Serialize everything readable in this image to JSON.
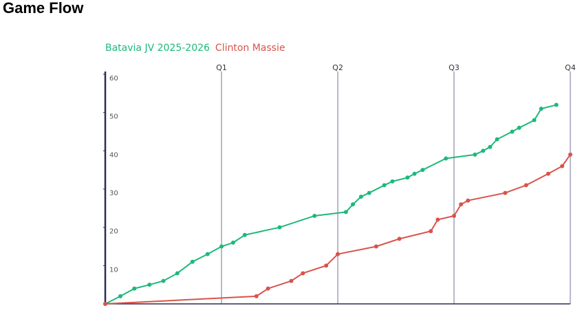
{
  "chart_data": {
    "type": "line",
    "title": "Game Flow",
    "xlim": [
      0,
      4
    ],
    "xticks": [
      {
        "value": 1,
        "label": "Q1"
      },
      {
        "value": 2,
        "label": "Q2"
      },
      {
        "value": 3,
        "label": "Q3"
      },
      {
        "value": 4,
        "label": "Q4"
      }
    ],
    "ylim": [
      0,
      60
    ],
    "yticks": [
      10,
      20,
      30,
      40,
      50,
      60
    ],
    "grid": true,
    "series": [
      {
        "name": "Batavia JV 2025-2026",
        "color": "#1db97a",
        "x": [
          0,
          0.13,
          0.25,
          0.38,
          0.5,
          0.62,
          0.75,
          0.88,
          1.0,
          1.1,
          1.2,
          1.5,
          1.8,
          2.07,
          2.13,
          2.2,
          2.27,
          2.4,
          2.47,
          2.6,
          2.66,
          2.73,
          2.93,
          3.18,
          3.25,
          3.31,
          3.37,
          3.5,
          3.56,
          3.69,
          3.75,
          3.88
        ],
        "values": [
          0,
          2,
          4,
          5,
          6,
          8,
          11,
          13,
          15,
          16,
          18,
          20,
          23,
          24,
          26,
          28,
          29,
          31,
          32,
          33,
          34,
          35,
          38,
          39,
          40,
          41,
          43,
          45,
          46,
          48,
          51,
          52
        ]
      },
      {
        "name": "Clinton Massie",
        "color": "#d9534a",
        "x": [
          0,
          1.3,
          1.4,
          1.6,
          1.7,
          1.9,
          2.0,
          2.33,
          2.53,
          2.8,
          2.86,
          3.0,
          3.06,
          3.12,
          3.44,
          3.62,
          3.81,
          3.93,
          4.0
        ],
        "values": [
          0,
          2,
          4,
          6,
          8,
          10,
          13,
          15,
          17,
          19,
          22,
          23,
          26,
          27,
          29,
          31,
          34,
          36,
          39
        ]
      }
    ]
  }
}
